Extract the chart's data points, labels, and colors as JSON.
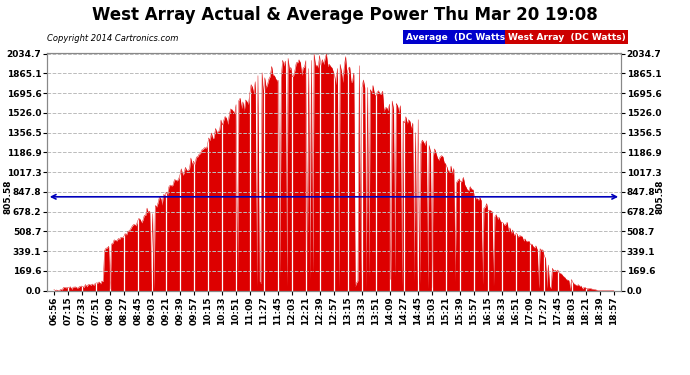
{
  "title": "West Array Actual & Average Power Thu Mar 20 19:08",
  "copyright": "Copyright 2014 Cartronics.com",
  "legend_labels": [
    "Average  (DC Watts)",
    "West Array  (DC Watts)"
  ],
  "legend_bg_colors": [
    "#0000cc",
    "#cc0000"
  ],
  "avg_line_value": 805.58,
  "avg_label": "805.58",
  "yticks": [
    0.0,
    169.6,
    339.1,
    508.7,
    678.2,
    847.8,
    1017.3,
    1186.9,
    1356.5,
    1526.0,
    1695.6,
    1865.1,
    2034.7
  ],
  "ymax": 2034.7,
  "ymin": 0.0,
  "background_color": "#ffffff",
  "grid_color": "#bbbbbb",
  "fill_color": "#dd0000",
  "line_color": "#0000bb",
  "title_fontsize": 12,
  "tick_label_fontsize": 6.5,
  "xtick_labels": [
    "06:56",
    "07:15",
    "07:33",
    "07:51",
    "08:09",
    "08:27",
    "08:45",
    "09:03",
    "09:21",
    "09:39",
    "09:57",
    "10:15",
    "10:33",
    "10:51",
    "11:09",
    "11:27",
    "11:45",
    "12:03",
    "12:21",
    "12:39",
    "12:57",
    "13:15",
    "13:33",
    "13:51",
    "14:09",
    "14:27",
    "14:45",
    "15:03",
    "15:21",
    "15:39",
    "15:57",
    "16:15",
    "16:33",
    "16:51",
    "17:09",
    "17:27",
    "17:45",
    "18:03",
    "18:21",
    "18:39",
    "18:57"
  ]
}
